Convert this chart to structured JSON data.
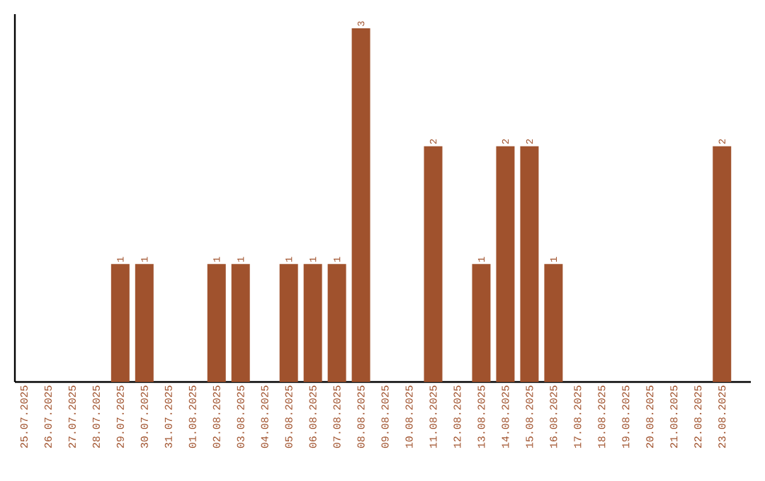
{
  "chart_data": {
    "type": "bar",
    "categories": [
      "25.07.2025",
      "26.07.2025",
      "27.07.2025",
      "28.07.2025",
      "29.07.2025",
      "30.07.2025",
      "31.07.2025",
      "01.08.2025",
      "02.08.2025",
      "03.08.2025",
      "04.08.2025",
      "05.08.2025",
      "06.08.2025",
      "07.08.2025",
      "08.08.2025",
      "09.08.2025",
      "10.08.2025",
      "11.08.2025",
      "12.08.2025",
      "13.08.2025",
      "14.08.2025",
      "15.08.2025",
      "16.08.2025",
      "17.08.2025",
      "18.08.2025",
      "19.08.2025",
      "20.08.2025",
      "21.08.2025",
      "22.08.2025",
      "23.08.2025"
    ],
    "values": [
      0,
      0,
      0,
      0,
      1,
      1,
      0,
      0,
      1,
      1,
      0,
      1,
      1,
      1,
      3,
      0,
      0,
      2,
      0,
      1,
      2,
      2,
      1,
      0,
      0,
      0,
      0,
      0,
      0,
      2
    ],
    "value_labels": [
      null,
      null,
      null,
      null,
      "1",
      "1",
      null,
      null,
      "1",
      "1",
      null,
      "1",
      "1",
      "1",
      "3",
      null,
      null,
      "2",
      null,
      "1",
      "2",
      "2",
      "1",
      null,
      null,
      null,
      null,
      null,
      null,
      "2"
    ],
    "color": "#a0522d",
    "grid": false
  }
}
